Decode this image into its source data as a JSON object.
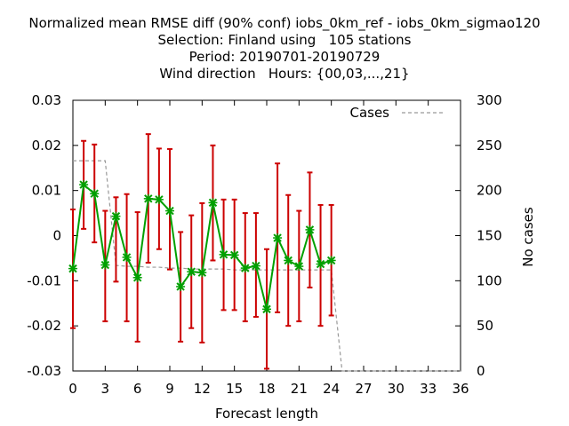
{
  "chart_data": {
    "type": "line",
    "title_lines": [
      "Normalized mean RMSE diff (90% conf) iobs_0km_ref - iobs_0km_sigmao120",
      "Selection: Finland using   105 stations",
      "Period: 20190701-20190729",
      "Wind direction   Hours: {00,03,...,21}"
    ],
    "xlabel": "Forecast length",
    "ylabel": "",
    "y2label": "No cases",
    "xlim": [
      0,
      36
    ],
    "ylim": [
      -0.03,
      0.03
    ],
    "y2lim": [
      0,
      300
    ],
    "x_ticks": [
      "0",
      "3",
      "6",
      "9",
      "12",
      "15",
      "18",
      "21",
      "24",
      "27",
      "30",
      "33",
      "36"
    ],
    "y_ticks": [
      "-0.03",
      "-0.02",
      "-0.01",
      "0",
      "0.01",
      "0.02",
      "0.03"
    ],
    "y2_ticks": [
      "0",
      "50",
      "100",
      "150",
      "200",
      "250",
      "300"
    ],
    "grid": false,
    "legend": {
      "position": "top-right",
      "entries": [
        "Cases"
      ]
    },
    "series": [
      {
        "name": "",
        "color": "#00a000",
        "marker_color": "#00a000",
        "error_color": "#cc0000",
        "x": [
          0,
          1,
          2,
          3,
          4,
          5,
          6,
          7,
          8,
          9,
          10,
          11,
          12,
          13,
          14,
          15,
          16,
          17,
          18,
          19,
          20,
          21,
          22,
          23,
          24
        ],
        "y": [
          -0.0073,
          0.0113,
          0.0093,
          -0.0065,
          0.0043,
          -0.0048,
          -0.0093,
          0.0082,
          0.008,
          0.0055,
          -0.0113,
          -0.008,
          -0.0082,
          0.0073,
          -0.0042,
          -0.0043,
          -0.0072,
          -0.0067,
          -0.0163,
          -0.0005,
          -0.0055,
          -0.0068,
          0.0013,
          -0.0063,
          -0.0055
        ],
        "err_low": [
          -0.0205,
          0.0015,
          -0.0015,
          -0.019,
          -0.0102,
          -0.019,
          -0.0235,
          -0.006,
          -0.003,
          -0.0075,
          -0.0235,
          -0.0205,
          -0.0237,
          -0.0055,
          -0.0165,
          -0.0165,
          -0.019,
          -0.018,
          -0.0295,
          -0.017,
          -0.02,
          -0.019,
          -0.0115,
          -0.02,
          -0.0177
        ],
        "err_high": [
          0.0058,
          0.021,
          0.0202,
          0.0055,
          0.0085,
          0.0092,
          0.0052,
          0.0225,
          0.0193,
          0.0192,
          0.0008,
          0.0045,
          0.0072,
          0.02,
          0.008,
          0.008,
          0.005,
          0.005,
          -0.003,
          0.016,
          0.009,
          0.0055,
          0.014,
          0.0068,
          0.0068
        ]
      },
      {
        "name": "Cases",
        "axis": "y2",
        "color": "#999999",
        "dash": true,
        "x": [
          0,
          1,
          2,
          3,
          4,
          5,
          6,
          7,
          8,
          9,
          10,
          11,
          12,
          13,
          14,
          15,
          16,
          17,
          18,
          19,
          20,
          21,
          22,
          23,
          24,
          25,
          26,
          27,
          28,
          29,
          30,
          31,
          32,
          33,
          34,
          35,
          36
        ],
        "y": [
          233,
          233,
          233,
          233,
          117,
          116,
          116,
          115,
          115,
          114,
          114,
          113,
          113,
          113,
          113,
          112,
          112,
          112,
          112,
          112,
          112,
          112,
          112,
          112,
          112,
          0,
          0,
          0,
          0,
          0,
          0,
          0,
          0,
          0,
          0,
          0,
          0
        ]
      }
    ]
  }
}
